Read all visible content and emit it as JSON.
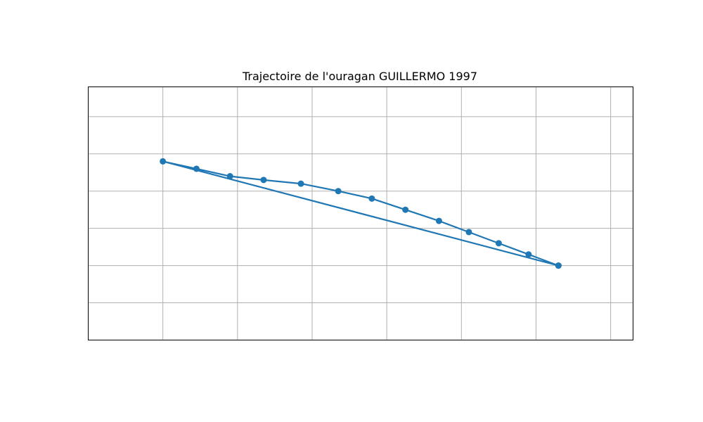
{
  "chart_data": {
    "type": "line",
    "title": "Trajectoire de l'ouragan GUILLERMO 1997",
    "xlabel": "",
    "ylabel": "",
    "xlim": [
      -2.0,
      12.6
    ],
    "ylim": [
      -2.0,
      4.8
    ],
    "x_grid": [
      0,
      2,
      4,
      6,
      8,
      10,
      12
    ],
    "y_grid": [
      -1,
      0,
      1,
      2,
      3,
      4
    ],
    "grid": true,
    "marker": "circle",
    "series": [
      {
        "name": "",
        "color": "#1f77b4",
        "x": [
          10.6,
          9.8,
          9.0,
          8.2,
          7.4,
          6.5,
          5.6,
          4.7,
          3.7,
          2.7,
          1.8,
          0.9,
          0.0,
          10.6
        ],
        "y": [
          0.0,
          0.3,
          0.6,
          0.9,
          1.2,
          1.5,
          1.8,
          2.0,
          2.2,
          2.3,
          2.4,
          2.6,
          2.8,
          0.0
        ]
      }
    ]
  }
}
